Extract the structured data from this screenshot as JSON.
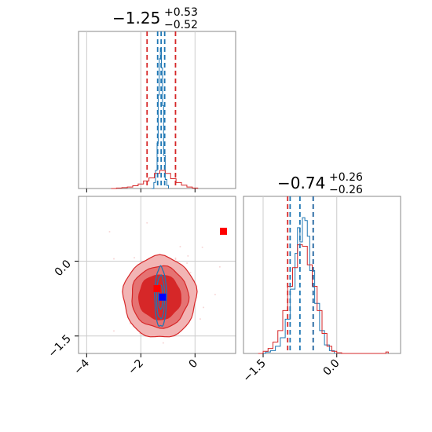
{
  "chart_data": [
    {
      "type": "histogram",
      "panel": "top-left",
      "title_value": "−1.25",
      "title_plus": "+0.53",
      "title_minus": "−0.52",
      "xlim": [
        -4.3,
        1.5
      ],
      "grid": true,
      "series": [
        {
          "color": "#1f77b4",
          "bins": [
            [
              -1.6,
              0
            ],
            [
              -1.52,
              0.04
            ],
            [
              -1.46,
              0.12
            ],
            [
              -1.4,
              0.3
            ],
            [
              -1.36,
              0.62
            ],
            [
              -1.32,
              0.86
            ],
            [
              -1.28,
              0.93
            ],
            [
              -1.24,
              0.8
            ],
            [
              -1.2,
              0.55
            ],
            [
              -1.16,
              0.22
            ],
            [
              -1.1,
              0.06
            ],
            [
              -1.04,
              0.02
            ],
            [
              -0.98,
              0
            ]
          ]
        },
        {
          "color": "#d62728",
          "bins": [
            [
              -3.1,
              0
            ],
            [
              -2.9,
              0.003
            ],
            [
              -2.7,
              0.006
            ],
            [
              -2.5,
              0.01
            ],
            [
              -2.3,
              0.018
            ],
            [
              -2.1,
              0.03
            ],
            [
              -1.9,
              0.05
            ],
            [
              -1.7,
              0.07
            ],
            [
              -1.5,
              0.1
            ],
            [
              -1.3,
              0.12
            ],
            [
              -1.1,
              0.1
            ],
            [
              -0.9,
              0.065
            ],
            [
              -0.7,
              0.04
            ],
            [
              -0.5,
              0.022
            ],
            [
              -0.3,
              0.01
            ],
            [
              -0.1,
              0.003
            ],
            [
              0.1,
              0
            ]
          ]
        }
      ],
      "quantile_lines": [
        {
          "color": "#d62728",
          "x": -1.77
        },
        {
          "color": "#d62728",
          "x": -0.72
        },
        {
          "color": "#1f77b4",
          "x": -1.38
        },
        {
          "color": "#1f77b4",
          "x": -1.25
        },
        {
          "color": "#1f77b4",
          "x": -1.12
        }
      ]
    },
    {
      "type": "scatter",
      "panel": "bottom-left",
      "xlim": [
        -4.3,
        1.5
      ],
      "ylim": [
        -1.85,
        1.3
      ],
      "xticks": [
        -4,
        -2,
        0
      ],
      "xtick_labels": [
        "−4",
        "−2",
        "0"
      ],
      "yticks": [
        -1.5,
        0.0
      ],
      "ytick_labels": [
        "−1.5",
        "0.0"
      ],
      "grid": true,
      "contours_red": {
        "center": [
          -1.3,
          -0.72
        ],
        "levels": [
          {
            "rx": 1.35,
            "ry": 0.82,
            "fill": "#f2b4b4",
            "stroke": "#d62728"
          },
          {
            "rx": 1.05,
            "ry": 0.62,
            "fill": "#e57373",
            "stroke": "#d62728"
          },
          {
            "rx": 0.78,
            "ry": 0.45,
            "fill": "#d62728",
            "stroke": "#d62728"
          }
        ]
      },
      "contours_blue": {
        "center": [
          -1.27,
          -0.72
        ],
        "levels": [
          {
            "rx": 0.22,
            "ry": 0.6
          },
          {
            "rx": 0.15,
            "ry": 0.43
          },
          {
            "rx": 0.08,
            "ry": 0.24
          }
        ]
      },
      "markers": [
        {
          "x": 1.05,
          "y": 0.6,
          "color": "#ff0000"
        },
        {
          "x": -1.4,
          "y": -0.55,
          "color": "#ff0000"
        },
        {
          "x": -1.2,
          "y": -0.72,
          "color": "#0000ff"
        }
      ]
    },
    {
      "type": "histogram",
      "panel": "bottom-right",
      "title_value": "−0.74",
      "title_plus": "+0.26",
      "title_minus": "−0.26",
      "xlim": [
        -1.9,
        1.3
      ],
      "xticks": [
        -1.5,
        0.0
      ],
      "xtick_labels": [
        "−1.5",
        "0.0"
      ],
      "grid": true,
      "series": [
        {
          "color": "#1f77b4",
          "bins": [
            [
              -1.55,
              0
            ],
            [
              -1.45,
              0.01
            ],
            [
              -1.35,
              0.02
            ],
            [
              -1.25,
              0.05
            ],
            [
              -1.15,
              0.11
            ],
            [
              -1.05,
              0.24
            ],
            [
              -0.95,
              0.45
            ],
            [
              -0.85,
              0.7
            ],
            [
              -0.8,
              0.88
            ],
            [
              -0.75,
              0.78
            ],
            [
              -0.7,
              0.95
            ],
            [
              -0.65,
              0.93
            ],
            [
              -0.6,
              0.82
            ],
            [
              -0.55,
              0.58
            ],
            [
              -0.45,
              0.35
            ],
            [
              -0.35,
              0.16
            ],
            [
              -0.25,
              0.06
            ],
            [
              -0.15,
              0.02
            ],
            [
              -0.05,
              0
            ]
          ]
        },
        {
          "color": "#d62728",
          "bins": [
            [
              -1.6,
              0
            ],
            [
              -1.5,
              0.015
            ],
            [
              -1.4,
              0.035
            ],
            [
              -1.3,
              0.08
            ],
            [
              -1.2,
              0.16
            ],
            [
              -1.1,
              0.3
            ],
            [
              -1.0,
              0.47
            ],
            [
              -0.9,
              0.6
            ],
            [
              -0.8,
              0.76
            ],
            [
              -0.7,
              0.75
            ],
            [
              -0.6,
              0.62
            ],
            [
              -0.5,
              0.47
            ],
            [
              -0.4,
              0.3
            ],
            [
              -0.3,
              0.14
            ],
            [
              -0.2,
              0.05
            ],
            [
              -0.1,
              0.015
            ],
            [
              0.0,
              0.005
            ],
            [
              0.1,
              0
            ],
            [
              1.0,
              0.01
            ],
            [
              1.05,
              0
            ]
          ]
        }
      ],
      "quantile_lines": [
        {
          "color": "#d62728",
          "x": -1.0
        },
        {
          "color": "#d62728",
          "x": -0.48
        },
        {
          "color": "#1f77b4",
          "x": -0.95
        },
        {
          "color": "#1f77b4",
          "x": -0.75
        },
        {
          "color": "#1f77b4",
          "x": -0.48
        }
      ]
    }
  ]
}
